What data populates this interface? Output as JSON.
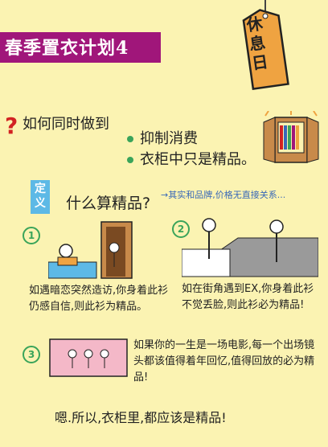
{
  "title": "春季置衣计划4",
  "tag": "休息日",
  "question": "如何同时做到",
  "bullets": [
    "抑制消费",
    "衣柜中只是精品。"
  ],
  "definition": {
    "badge": "定义",
    "main": "什么算精品?",
    "note": "→其实和品牌,价格无直接关系..."
  },
  "scenarios": [
    {
      "num": "1",
      "text": "如遇暗恋突然造访,你身着此衫仍感自信,则此衫为精品。"
    },
    {
      "num": "2",
      "text": "如在街角遇到EX,你身着此衫不觉丢脸,则此衫必为精品!"
    },
    {
      "num": "3",
      "text": "如果你的一生是一场电影,每一个出场镜头都该值得着年回忆,值得回放的必为精品!"
    }
  ],
  "conclusion": "嗯.所以,衣柜里,都应该是精品!",
  "colors": {
    "background": "#FBF3B2",
    "banner": "#A0167A",
    "accent_green": "#3AA45A",
    "accent_blue": "#5DB9E6",
    "question_red": "#D22222"
  }
}
